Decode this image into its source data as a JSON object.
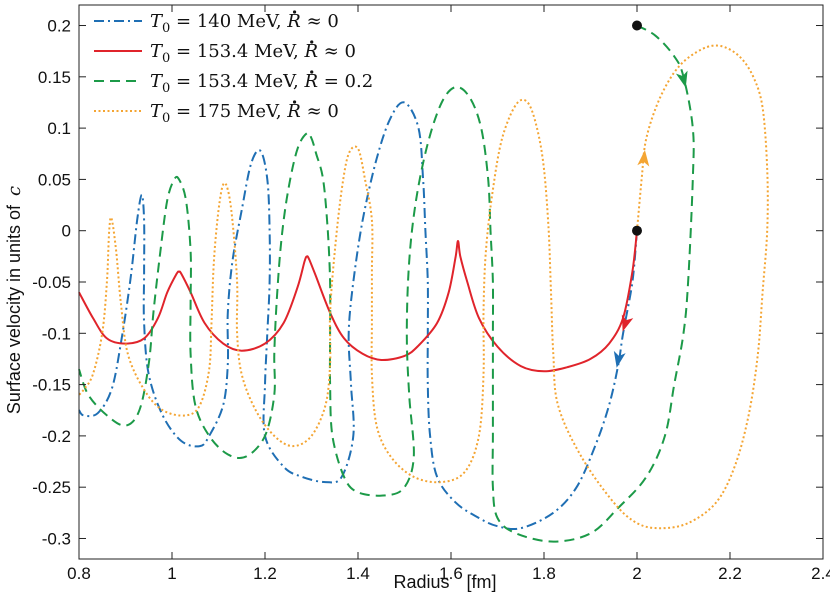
{
  "chart_data": {
    "type": "line",
    "xlabel": "Radius",
    "xunit": "[fm]",
    "ylabel": "Surface velocity in units of",
    "yunit": "c",
    "xlim": [
      0.8,
      2.4
    ],
    "ylim": [
      -0.32,
      0.22
    ],
    "xticks": [
      "0.8",
      "1",
      "1.2",
      "1.4",
      "1.6",
      "1.8",
      "2",
      "2.2",
      "2.4"
    ],
    "yticks": [
      "-0.3",
      "-0.25",
      "-0.2",
      "-0.15",
      "-0.1",
      "-0.05",
      "0",
      "0.05",
      "0.1",
      "0.15",
      "0.2"
    ],
    "legend_position": "top-left",
    "series": [
      {
        "name": "T0 = 140 MeV, Rdot ≈ 0",
        "label_parts": [
          "T",
          "0",
          " = 140 MeV,  ",
          "R",
          " ≈ 0"
        ],
        "color": "#1f6fb4",
        "style": "dashdot",
        "points": [
          [
            2.0,
            0.0
          ],
          [
            1.99,
            -0.05
          ],
          [
            1.97,
            -0.1
          ],
          [
            1.96,
            -0.13
          ],
          [
            1.94,
            -0.17
          ],
          [
            1.91,
            -0.21
          ],
          [
            1.87,
            -0.25
          ],
          [
            1.82,
            -0.275
          ],
          [
            1.75,
            -0.29
          ],
          [
            1.7,
            -0.288
          ],
          [
            1.66,
            -0.28
          ],
          [
            1.61,
            -0.265
          ],
          [
            1.57,
            -0.24
          ],
          [
            1.555,
            -0.2
          ],
          [
            1.55,
            -0.15
          ],
          [
            1.55,
            -0.1
          ],
          [
            1.55,
            -0.05
          ],
          [
            1.545,
            0.0
          ],
          [
            1.54,
            0.05
          ],
          [
            1.53,
            0.1
          ],
          [
            1.5,
            0.125
          ],
          [
            1.47,
            0.11
          ],
          [
            1.44,
            0.07
          ],
          [
            1.41,
            0.01
          ],
          [
            1.39,
            -0.05
          ],
          [
            1.38,
            -0.1
          ],
          [
            1.385,
            -0.15
          ],
          [
            1.39,
            -0.2
          ],
          [
            1.365,
            -0.24
          ],
          [
            1.33,
            -0.245
          ],
          [
            1.28,
            -0.24
          ],
          [
            1.24,
            -0.23
          ],
          [
            1.2,
            -0.2
          ],
          [
            1.2,
            -0.15
          ],
          [
            1.205,
            -0.1
          ],
          [
            1.21,
            -0.05
          ],
          [
            1.21,
            0.0
          ],
          [
            1.205,
            0.05
          ],
          [
            1.19,
            0.078
          ],
          [
            1.17,
            0.065
          ],
          [
            1.15,
            0.02
          ],
          [
            1.13,
            -0.03
          ],
          [
            1.12,
            -0.08
          ],
          [
            1.12,
            -0.13
          ],
          [
            1.11,
            -0.17
          ],
          [
            1.08,
            -0.2
          ],
          [
            1.06,
            -0.21
          ],
          [
            1.02,
            -0.205
          ],
          [
            0.98,
            -0.18
          ],
          [
            0.95,
            -0.14
          ],
          [
            0.94,
            -0.09
          ],
          [
            0.94,
            -0.04
          ],
          [
            0.94,
            0.01
          ],
          [
            0.935,
            0.035
          ],
          [
            0.925,
            0.01
          ],
          [
            0.91,
            -0.05
          ],
          [
            0.89,
            -0.11
          ],
          [
            0.87,
            -0.155
          ],
          [
            0.84,
            -0.178
          ],
          [
            0.81,
            -0.18
          ],
          [
            0.8,
            -0.175
          ]
        ],
        "arrow": {
          "x": 1.96,
          "y": -0.125
        }
      },
      {
        "name": "T0 = 153.4 MeV, Rdot ≈ 0",
        "label_parts": [
          "T",
          "0",
          " = 153.4 MeV,  ",
          "R",
          " ≈ 0"
        ],
        "color": "#e0242b",
        "style": "solid",
        "points": [
          [
            2.0,
            0.0
          ],
          [
            1.99,
            -0.04
          ],
          [
            1.97,
            -0.085
          ],
          [
            1.94,
            -0.11
          ],
          [
            1.9,
            -0.125
          ],
          [
            1.85,
            -0.133
          ],
          [
            1.8,
            -0.137
          ],
          [
            1.75,
            -0.132
          ],
          [
            1.7,
            -0.113
          ],
          [
            1.66,
            -0.085
          ],
          [
            1.635,
            -0.05
          ],
          [
            1.62,
            -0.025
          ],
          [
            1.615,
            -0.01
          ],
          [
            1.61,
            -0.025
          ],
          [
            1.595,
            -0.06
          ],
          [
            1.57,
            -0.09
          ],
          [
            1.53,
            -0.112
          ],
          [
            1.5,
            -0.122
          ],
          [
            1.45,
            -0.126
          ],
          [
            1.41,
            -0.12
          ],
          [
            1.37,
            -0.105
          ],
          [
            1.34,
            -0.08
          ],
          [
            1.31,
            -0.045
          ],
          [
            1.295,
            -0.028
          ],
          [
            1.29,
            -0.025
          ],
          [
            1.285,
            -0.03
          ],
          [
            1.27,
            -0.055
          ],
          [
            1.24,
            -0.09
          ],
          [
            1.2,
            -0.11
          ],
          [
            1.15,
            -0.117
          ],
          [
            1.11,
            -0.11
          ],
          [
            1.07,
            -0.09
          ],
          [
            1.04,
            -0.06
          ],
          [
            1.02,
            -0.042
          ],
          [
            1.015,
            -0.04
          ],
          [
            1.01,
            -0.042
          ],
          [
            0.99,
            -0.06
          ],
          [
            0.97,
            -0.085
          ],
          [
            0.94,
            -0.105
          ],
          [
            0.9,
            -0.11
          ],
          [
            0.86,
            -0.105
          ],
          [
            0.83,
            -0.085
          ],
          [
            0.8,
            -0.06
          ]
        ],
        "arrow": {
          "x": 1.975,
          "y": -0.09
        }
      },
      {
        "name": "T0 = 153.4 MeV, Rdot = 0.2",
        "label_parts": [
          "T",
          "0",
          " = 153.4 MeV,  ",
          "R",
          " = 0.2"
        ],
        "color": "#1c9a48",
        "style": "dashed",
        "points": [
          [
            2.0,
            0.2
          ],
          [
            2.04,
            0.19
          ],
          [
            2.08,
            0.17
          ],
          [
            2.1,
            0.15
          ],
          [
            2.12,
            0.1
          ],
          [
            2.12,
            0.05
          ],
          [
            2.11,
            -0.05
          ],
          [
            2.1,
            -0.1
          ],
          [
            2.08,
            -0.15
          ],
          [
            2.06,
            -0.2
          ],
          [
            2.02,
            -0.24
          ],
          [
            1.96,
            -0.27
          ],
          [
            1.9,
            -0.295
          ],
          [
            1.82,
            -0.303
          ],
          [
            1.74,
            -0.295
          ],
          [
            1.7,
            -0.28
          ],
          [
            1.69,
            -0.25
          ],
          [
            1.69,
            -0.2
          ],
          [
            1.69,
            -0.15
          ],
          [
            1.69,
            -0.1
          ],
          [
            1.69,
            -0.05
          ],
          [
            1.685,
            0.0
          ],
          [
            1.68,
            0.05
          ],
          [
            1.665,
            0.1
          ],
          [
            1.64,
            0.13
          ],
          [
            1.61,
            0.14
          ],
          [
            1.58,
            0.125
          ],
          [
            1.55,
            0.085
          ],
          [
            1.525,
            0.03
          ],
          [
            1.51,
            -0.03
          ],
          [
            1.505,
            -0.1
          ],
          [
            1.51,
            -0.16
          ],
          [
            1.52,
            -0.22
          ],
          [
            1.5,
            -0.25
          ],
          [
            1.46,
            -0.258
          ],
          [
            1.4,
            -0.255
          ],
          [
            1.37,
            -0.24
          ],
          [
            1.345,
            -0.2
          ],
          [
            1.34,
            -0.15
          ],
          [
            1.34,
            -0.1
          ],
          [
            1.34,
            -0.05
          ],
          [
            1.335,
            0.0
          ],
          [
            1.325,
            0.05
          ],
          [
            1.31,
            0.075
          ],
          [
            1.3,
            0.09
          ],
          [
            1.29,
            0.095
          ],
          [
            1.27,
            0.08
          ],
          [
            1.25,
            0.04
          ],
          [
            1.235,
            -0.01
          ],
          [
            1.225,
            -0.07
          ],
          [
            1.22,
            -0.12
          ],
          [
            1.22,
            -0.16
          ],
          [
            1.2,
            -0.2
          ],
          [
            1.16,
            -0.22
          ],
          [
            1.12,
            -0.218
          ],
          [
            1.08,
            -0.2
          ],
          [
            1.05,
            -0.17
          ],
          [
            1.04,
            -0.12
          ],
          [
            1.04,
            -0.07
          ],
          [
            1.04,
            -0.02
          ],
          [
            1.03,
            0.03
          ],
          [
            1.015,
            0.05
          ],
          [
            1.005,
            0.05
          ],
          [
            0.99,
            0.03
          ],
          [
            0.975,
            -0.02
          ],
          [
            0.96,
            -0.08
          ],
          [
            0.95,
            -0.13
          ],
          [
            0.93,
            -0.175
          ],
          [
            0.9,
            -0.19
          ],
          [
            0.86,
            -0.18
          ],
          [
            0.82,
            -0.16
          ],
          [
            0.8,
            -0.135
          ]
        ],
        "arrow": {
          "x": 2.1,
          "y": 0.148
        }
      },
      {
        "name": "T0 = 175 MeV, Rdot ≈ 0",
        "label_parts": [
          "T",
          "0",
          " = 175 MeV,  ",
          "R",
          " ≈ 0"
        ],
        "color": "#f4a533",
        "style": "dotted",
        "points": [
          [
            2.0,
            0.0
          ],
          [
            2.01,
            0.05
          ],
          [
            2.02,
            0.09
          ],
          [
            2.05,
            0.13
          ],
          [
            2.09,
            0.16
          ],
          [
            2.14,
            0.177
          ],
          [
            2.18,
            0.18
          ],
          [
            2.22,
            0.17
          ],
          [
            2.25,
            0.15
          ],
          [
            2.27,
            0.12
          ],
          [
            2.28,
            0.06
          ],
          [
            2.28,
            0.0
          ],
          [
            2.27,
            -0.06
          ],
          [
            2.26,
            -0.12
          ],
          [
            2.24,
            -0.18
          ],
          [
            2.21,
            -0.23
          ],
          [
            2.17,
            -0.265
          ],
          [
            2.11,
            -0.285
          ],
          [
            2.05,
            -0.29
          ],
          [
            2.0,
            -0.285
          ],
          [
            1.95,
            -0.265
          ],
          [
            1.88,
            -0.22
          ],
          [
            1.83,
            -0.17
          ],
          [
            1.82,
            -0.12
          ],
          [
            1.815,
            -0.06
          ],
          [
            1.81,
            0.0
          ],
          [
            1.8,
            0.06
          ],
          [
            1.785,
            0.1
          ],
          [
            1.765,
            0.125
          ],
          [
            1.74,
            0.123
          ],
          [
            1.71,
            0.09
          ],
          [
            1.69,
            0.04
          ],
          [
            1.675,
            -0.02
          ],
          [
            1.67,
            -0.08
          ],
          [
            1.67,
            -0.14
          ],
          [
            1.66,
            -0.2
          ],
          [
            1.63,
            -0.235
          ],
          [
            1.58,
            -0.245
          ],
          [
            1.52,
            -0.24
          ],
          [
            1.47,
            -0.22
          ],
          [
            1.44,
            -0.19
          ],
          [
            1.43,
            -0.14
          ],
          [
            1.43,
            -0.09
          ],
          [
            1.43,
            -0.04
          ],
          [
            1.43,
            0.01
          ],
          [
            1.415,
            0.05
          ],
          [
            1.4,
            0.08
          ],
          [
            1.38,
            0.075
          ],
          [
            1.365,
            0.04
          ],
          [
            1.35,
            -0.02
          ],
          [
            1.34,
            -0.08
          ],
          [
            1.34,
            -0.13
          ],
          [
            1.33,
            -0.17
          ],
          [
            1.3,
            -0.2
          ],
          [
            1.26,
            -0.21
          ],
          [
            1.22,
            -0.2
          ],
          [
            1.18,
            -0.175
          ],
          [
            1.15,
            -0.14
          ],
          [
            1.14,
            -0.1
          ],
          [
            1.14,
            -0.05
          ],
          [
            1.13,
            0.01
          ],
          [
            1.12,
            0.04
          ],
          [
            1.11,
            0.045
          ],
          [
            1.1,
            0.02
          ],
          [
            1.09,
            -0.03
          ],
          [
            1.085,
            -0.09
          ],
          [
            1.08,
            -0.135
          ],
          [
            1.06,
            -0.17
          ],
          [
            1.03,
            -0.18
          ],
          [
            0.98,
            -0.175
          ],
          [
            0.94,
            -0.155
          ],
          [
            0.905,
            -0.12
          ],
          [
            0.89,
            -0.07
          ],
          [
            0.88,
            -0.02
          ],
          [
            0.87,
            0.012
          ],
          [
            0.865,
            0.0
          ],
          [
            0.86,
            -0.05
          ],
          [
            0.85,
            -0.1
          ],
          [
            0.83,
            -0.14
          ],
          [
            0.81,
            -0.155
          ],
          [
            0.8,
            -0.16
          ]
        ],
        "arrow": {
          "x": 2.015,
          "y": 0.07
        }
      }
    ],
    "markers": [
      {
        "x": 2.0,
        "y": 0.2,
        "color": "#111111"
      },
      {
        "x": 2.0,
        "y": 0.0,
        "color": "#111111"
      }
    ]
  }
}
